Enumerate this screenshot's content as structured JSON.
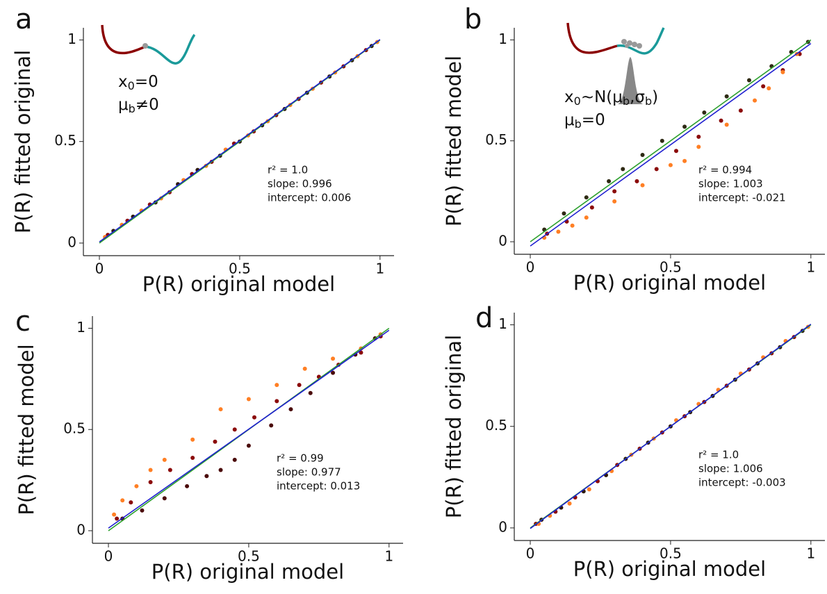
{
  "chart_data": [
    {
      "type": "scatter",
      "panel": "a",
      "xlabel": "P(R) original model",
      "ylabel": "P(R) fitted original",
      "inset_labels": [
        [
          "x",
          "0",
          "=0"
        ],
        [
          "μ",
          "b",
          "≠0"
        ]
      ],
      "annotations": [
        "r² = 1.0",
        "slope: 0.996",
        "intercept: 0.006"
      ],
      "xlim": [
        -0.057,
        1.05
      ],
      "ylim": [
        -0.062,
        1.06
      ],
      "xticks": [
        0,
        0.5,
        1
      ],
      "yticks": [
        0,
        0.5,
        1
      ],
      "series": [
        {
          "color": "#2e1a0c",
          "x": [
            0.05,
            0.12,
            0.2,
            0.28,
            0.35,
            0.43,
            0.5,
            0.58,
            0.66,
            0.74,
            0.82,
            0.9,
            0.97
          ],
          "values": [
            0.06,
            0.13,
            0.2,
            0.29,
            0.36,
            0.43,
            0.5,
            0.58,
            0.66,
            0.74,
            0.82,
            0.9,
            0.97
          ]
        },
        {
          "color": "#8b0a0a",
          "x": [
            0.03,
            0.1,
            0.18,
            0.25,
            0.33,
            0.4,
            0.48,
            0.55,
            0.63,
            0.71,
            0.79,
            0.87,
            0.95
          ],
          "values": [
            0.04,
            0.11,
            0.19,
            0.25,
            0.34,
            0.4,
            0.49,
            0.55,
            0.63,
            0.71,
            0.79,
            0.87,
            0.95
          ]
        },
        {
          "color": "#ff7f24",
          "x": [
            0.02,
            0.08,
            0.15,
            0.22,
            0.3,
            0.38,
            0.45,
            0.53,
            0.6,
            0.68,
            0.76,
            0.84,
            0.92,
            0.99
          ],
          "values": [
            0.03,
            0.09,
            0.16,
            0.22,
            0.31,
            0.38,
            0.46,
            0.53,
            0.6,
            0.68,
            0.76,
            0.84,
            0.92,
            0.99
          ]
        }
      ],
      "fit_lines": [
        {
          "color": "#2ca02c",
          "x": [
            0,
            1
          ],
          "values": [
            0,
            1
          ]
        },
        {
          "color": "#1f1fd0",
          "x": [
            0,
            1
          ],
          "values": [
            0.006,
            1.002
          ]
        }
      ]
    },
    {
      "type": "scatter",
      "panel": "b",
      "xlabel": "P(R) original model",
      "ylabel": "P(R) fitted model",
      "inset_labels": [
        [
          "x",
          "0",
          "~N(μ",
          "b",
          ",σ",
          "b",
          ")"
        ],
        [
          "μ",
          "b",
          "=0"
        ]
      ],
      "annotations": [
        "r² = 0.994",
        "slope: 1.003",
        "intercept: -0.021"
      ],
      "xlim": [
        -0.057,
        1.05
      ],
      "ylim": [
        -0.062,
        1.06
      ],
      "xticks": [
        0,
        0.5,
        1
      ],
      "yticks": [
        0,
        0.5,
        1
      ],
      "series": [
        {
          "color": "#2e2a14",
          "x": [
            0.05,
            0.12,
            0.2,
            0.28,
            0.33,
            0.4,
            0.47,
            0.55,
            0.62,
            0.7,
            0.78,
            0.86,
            0.93,
            0.99
          ],
          "values": [
            0.06,
            0.14,
            0.22,
            0.3,
            0.36,
            0.43,
            0.5,
            0.57,
            0.64,
            0.72,
            0.8,
            0.87,
            0.94,
            0.99
          ]
        },
        {
          "color": "#8b0a0a",
          "x": [
            0.06,
            0.13,
            0.22,
            0.3,
            0.38,
            0.45,
            0.52,
            0.6,
            0.68,
            0.75,
            0.83,
            0.9,
            0.96
          ],
          "values": [
            0.04,
            0.1,
            0.17,
            0.25,
            0.3,
            0.36,
            0.45,
            0.52,
            0.6,
            0.65,
            0.77,
            0.85,
            0.93
          ]
        },
        {
          "color": "#ff7f24",
          "x": [
            0.05,
            0.1,
            0.15,
            0.2,
            0.3,
            0.4,
            0.5,
            0.55,
            0.6,
            0.7,
            0.8,
            0.85,
            0.9,
            0.95
          ],
          "values": [
            0.02,
            0.05,
            0.08,
            0.12,
            0.2,
            0.28,
            0.38,
            0.4,
            0.47,
            0.58,
            0.7,
            0.76,
            0.84,
            0.93
          ]
        }
      ],
      "fit_lines": [
        {
          "color": "#2ca02c",
          "x": [
            0,
            1
          ],
          "values": [
            0,
            1
          ]
        },
        {
          "color": "#1f1fd0",
          "x": [
            0,
            1
          ],
          "values": [
            -0.021,
            0.982
          ]
        }
      ]
    },
    {
      "type": "scatter",
      "panel": "c",
      "xlabel": "P(R) original model",
      "ylabel": "P(R) fitted model",
      "annotations": [
        "r² = 0.99",
        "slope: 0.977",
        "intercept: 0.013"
      ],
      "xlim": [
        -0.057,
        1.05
      ],
      "ylim": [
        -0.062,
        1.06
      ],
      "xticks": [
        0,
        0.5,
        1
      ],
      "yticks": [
        0,
        0.5,
        1
      ],
      "series": [
        {
          "color": "#4a0a0a",
          "x": [
            0.05,
            0.12,
            0.2,
            0.28,
            0.35,
            0.4,
            0.45,
            0.5,
            0.58,
            0.65,
            0.72,
            0.8,
            0.88,
            0.95
          ],
          "values": [
            0.06,
            0.1,
            0.16,
            0.22,
            0.27,
            0.3,
            0.35,
            0.42,
            0.52,
            0.6,
            0.68,
            0.78,
            0.87,
            0.95
          ]
        },
        {
          "color": "#8b0a0a",
          "x": [
            0.03,
            0.08,
            0.15,
            0.22,
            0.3,
            0.38,
            0.45,
            0.52,
            0.6,
            0.68,
            0.75,
            0.82,
            0.9,
            0.97
          ],
          "values": [
            0.06,
            0.14,
            0.24,
            0.3,
            0.36,
            0.44,
            0.5,
            0.56,
            0.64,
            0.72,
            0.76,
            0.82,
            0.88,
            0.96
          ]
        },
        {
          "color": "#ff7f24",
          "x": [
            0.02,
            0.05,
            0.1,
            0.15,
            0.2,
            0.3,
            0.4,
            0.5,
            0.6,
            0.7,
            0.8,
            0.9,
            0.97
          ],
          "values": [
            0.08,
            0.15,
            0.22,
            0.3,
            0.35,
            0.45,
            0.6,
            0.65,
            0.72,
            0.8,
            0.85,
            0.9,
            0.97
          ]
        }
      ],
      "fit_lines": [
        {
          "color": "#2ca02c",
          "x": [
            0,
            1
          ],
          "values": [
            0,
            1
          ]
        },
        {
          "color": "#1f1fd0",
          "x": [
            0,
            1
          ],
          "values": [
            0.013,
            0.99
          ]
        }
      ]
    },
    {
      "type": "scatter",
      "panel": "d",
      "xlabel": "P(R) original model",
      "ylabel": "P(R) fitted original",
      "annotations": [
        "r² = 1.0",
        "slope: 1.006",
        "intercept: -0.003"
      ],
      "xlim": [
        -0.057,
        1.05
      ],
      "ylim": [
        -0.062,
        1.06
      ],
      "xticks": [
        0,
        0.5,
        1
      ],
      "yticks": [
        0,
        0.5,
        1
      ],
      "series": [
        {
          "color": "#2e1a0c",
          "x": [
            0.04,
            0.11,
            0.19,
            0.27,
            0.34,
            0.42,
            0.5,
            0.57,
            0.65,
            0.73,
            0.81,
            0.89,
            0.97
          ],
          "values": [
            0.04,
            0.1,
            0.18,
            0.26,
            0.34,
            0.42,
            0.5,
            0.57,
            0.65,
            0.73,
            0.81,
            0.89,
            0.97
          ]
        },
        {
          "color": "#8b0a0a",
          "x": [
            0.02,
            0.09,
            0.16,
            0.24,
            0.31,
            0.39,
            0.47,
            0.55,
            0.62,
            0.7,
            0.78,
            0.86,
            0.94
          ],
          "values": [
            0.02,
            0.08,
            0.15,
            0.23,
            0.31,
            0.39,
            0.47,
            0.55,
            0.62,
            0.7,
            0.78,
            0.86,
            0.94
          ]
        },
        {
          "color": "#ff7f24",
          "x": [
            0.03,
            0.07,
            0.14,
            0.21,
            0.29,
            0.36,
            0.44,
            0.52,
            0.6,
            0.67,
            0.75,
            0.83,
            0.91,
            0.99
          ],
          "values": [
            0.02,
            0.06,
            0.12,
            0.19,
            0.28,
            0.36,
            0.44,
            0.53,
            0.61,
            0.68,
            0.76,
            0.84,
            0.92,
            0.99
          ]
        }
      ],
      "fit_lines": [
        {
          "color": "#2ca02c",
          "x": [
            0,
            1
          ],
          "values": [
            0,
            1
          ]
        },
        {
          "color": "#1f1fd0",
          "x": [
            0,
            1
          ],
          "values": [
            -0.003,
            1.003
          ]
        }
      ]
    }
  ]
}
